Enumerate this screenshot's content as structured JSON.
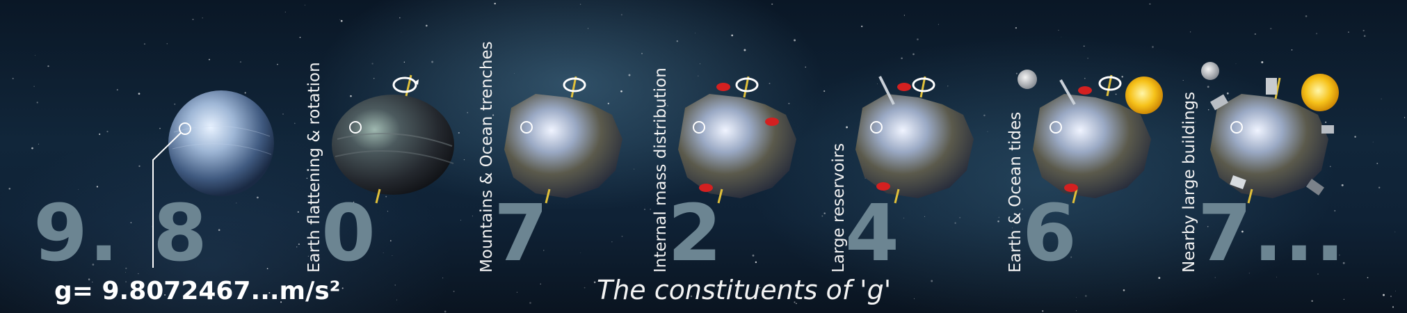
{
  "graphic": {
    "gravity_value": "g= 9.8072467...m/s²",
    "title": "The constituents of 'g'",
    "digits": [
      "9.",
      "8",
      "0",
      "7",
      "2",
      "4",
      "6",
      "7..."
    ],
    "labels": [
      "Earth flattening & rotation",
      "Mountains & Ocean trenches",
      "Internal mass distribution",
      "Large reservoirs",
      "Earth & Ocean tides",
      "Nearby large buildings"
    ],
    "colors": {
      "digit": "#6c8592",
      "text": "#f2f2f2",
      "axis": "#e0c03a",
      "mass_anomaly": "#d42020",
      "sun": "#f6c21a"
    },
    "icons": [
      "globe-icon",
      "rotation-arrow-icon",
      "moon-icon",
      "sun-icon",
      "building-icon",
      "reservoir-icon"
    ]
  }
}
